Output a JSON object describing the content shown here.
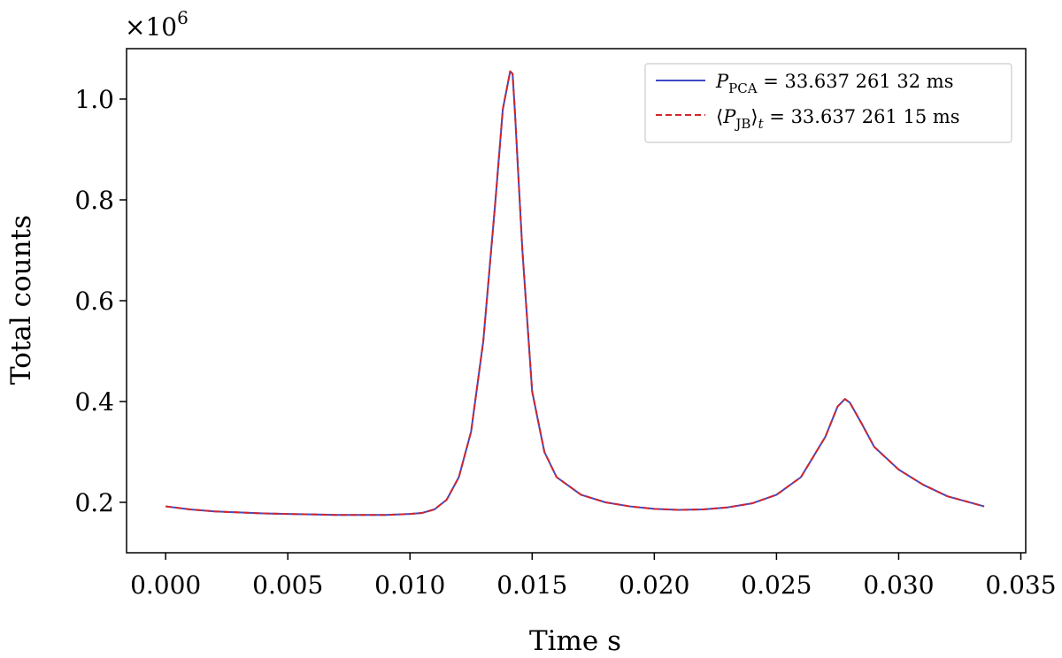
{
  "chart_data": {
    "type": "line",
    "xlabel": "Time s",
    "ylabel": "Total counts",
    "offset_text": "×10",
    "offset_exponent": "6",
    "xlim": [
      -0.0016,
      0.0352
    ],
    "ylim": [
      0.1,
      1.1
    ],
    "x_ticks": [
      0.0,
      0.005,
      0.01,
      0.015,
      0.02,
      0.025,
      0.03,
      0.035
    ],
    "x_tick_labels": [
      "0.000",
      "0.005",
      "0.010",
      "0.015",
      "0.020",
      "0.025",
      "0.030",
      "0.035"
    ],
    "y_ticks": [
      0.2,
      0.4,
      0.6,
      0.8,
      1.0
    ],
    "y_tick_labels": [
      "0.2",
      "0.4",
      "0.6",
      "0.8",
      "1.0"
    ],
    "grid": false,
    "legend_position": "top-right",
    "x": [
      0.0,
      0.001,
      0.002,
      0.003,
      0.004,
      0.005,
      0.006,
      0.007,
      0.008,
      0.009,
      0.01,
      0.0105,
      0.011,
      0.0115,
      0.012,
      0.0125,
      0.013,
      0.0135,
      0.0138,
      0.0141,
      0.0142,
      0.0143,
      0.0146,
      0.015,
      0.0155,
      0.016,
      0.017,
      0.018,
      0.019,
      0.02,
      0.021,
      0.022,
      0.023,
      0.024,
      0.025,
      0.026,
      0.027,
      0.0275,
      0.0278,
      0.028,
      0.0285,
      0.029,
      0.03,
      0.031,
      0.032,
      0.0335
    ],
    "series": [
      {
        "name_base": "P",
        "name_sub": "PCA",
        "name_value": " = 33.637 261 32 ms",
        "color": "#3f49c6",
        "dash": "solid",
        "values": [
          0.192,
          0.186,
          0.182,
          0.18,
          0.178,
          0.177,
          0.176,
          0.175,
          0.175,
          0.175,
          0.177,
          0.179,
          0.186,
          0.205,
          0.25,
          0.34,
          0.52,
          0.8,
          0.98,
          1.055,
          1.05,
          0.97,
          0.7,
          0.42,
          0.3,
          0.25,
          0.215,
          0.2,
          0.192,
          0.187,
          0.185,
          0.186,
          0.19,
          0.198,
          0.215,
          0.25,
          0.33,
          0.39,
          0.405,
          0.398,
          0.355,
          0.31,
          0.265,
          0.235,
          0.212,
          0.192
        ]
      },
      {
        "name_base": "P",
        "name_sub": "JB",
        "name_extra": "t",
        "name_value": " = 33.637 261 15 ms",
        "color": "#d1262b",
        "dash": "dashed",
        "values": [
          0.192,
          0.186,
          0.182,
          0.18,
          0.178,
          0.177,
          0.176,
          0.175,
          0.175,
          0.175,
          0.177,
          0.179,
          0.186,
          0.205,
          0.25,
          0.34,
          0.52,
          0.8,
          0.98,
          1.055,
          1.05,
          0.97,
          0.7,
          0.42,
          0.3,
          0.25,
          0.215,
          0.2,
          0.192,
          0.187,
          0.185,
          0.186,
          0.19,
          0.198,
          0.215,
          0.25,
          0.33,
          0.39,
          0.405,
          0.398,
          0.355,
          0.31,
          0.265,
          0.235,
          0.212,
          0.192
        ]
      }
    ]
  }
}
